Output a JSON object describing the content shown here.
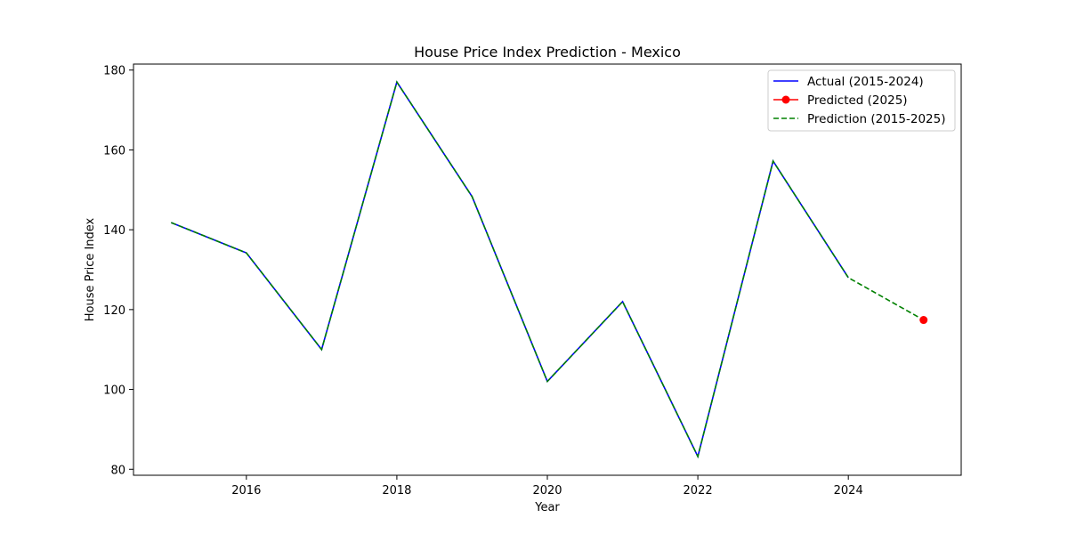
{
  "chart_data": {
    "type": "line",
    "title": "House Price Index Prediction - Mexico",
    "xlabel": "Year",
    "ylabel": "House Price Index",
    "xlim": [
      2014.5,
      2025.5
    ],
    "ylim": [
      78.5,
      181.5
    ],
    "x_ticks": [
      2016,
      2018,
      2020,
      2022,
      2024
    ],
    "y_ticks": [
      80,
      100,
      120,
      140,
      160,
      180
    ],
    "grid": false,
    "legend_position": "top-right",
    "series": [
      {
        "name": "Actual (2015-2024)",
        "color": "#0000ff",
        "style": "solid",
        "x": [
          2015,
          2016,
          2017,
          2018,
          2019,
          2020,
          2021,
          2022,
          2023,
          2024
        ],
        "y": [
          141.8,
          134.2,
          110.0,
          177.0,
          148.3,
          102.0,
          122.0,
          83.2,
          157.2,
          128.0
        ]
      },
      {
        "name": "Predicted (2025)",
        "color": "#ff0000",
        "style": "marker",
        "x": [
          2025
        ],
        "y": [
          117.4
        ]
      },
      {
        "name": "Prediction (2015-2025)",
        "color": "#008000",
        "style": "dashed",
        "x": [
          2015,
          2016,
          2017,
          2018,
          2019,
          2020,
          2021,
          2022,
          2023,
          2024,
          2025
        ],
        "y": [
          141.8,
          134.2,
          110.0,
          177.0,
          148.3,
          102.0,
          122.0,
          83.2,
          157.2,
          128.0,
          117.4
        ]
      }
    ]
  }
}
